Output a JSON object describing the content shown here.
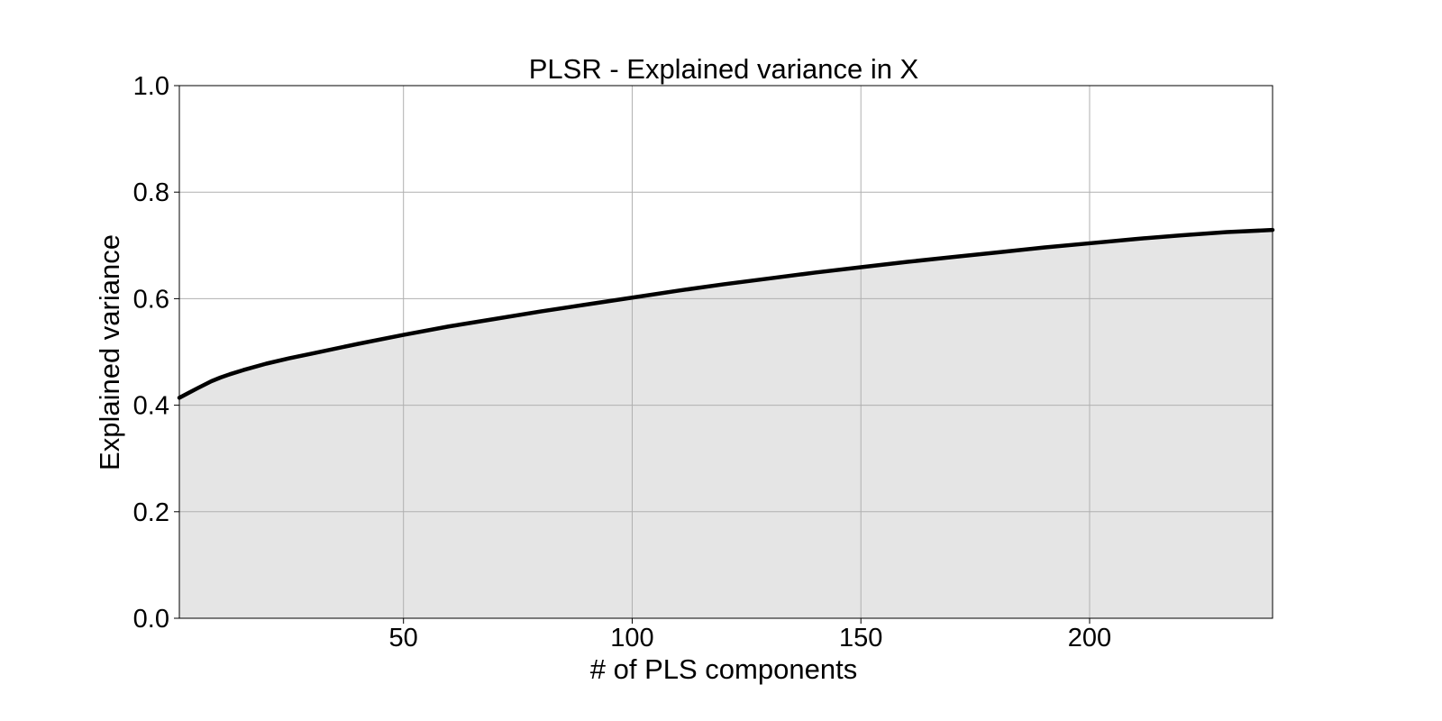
{
  "chart_data": {
    "type": "area",
    "title": "PLSR - Explained variance in X",
    "xlabel": "# of PLS components",
    "ylabel": "Explained variance",
    "xlim": [
      1,
      240
    ],
    "ylim": [
      0.0,
      1.0
    ],
    "grid": true,
    "line_color": "#000000",
    "fill_color": "#e5e5e5",
    "x_ticks": [
      {
        "value": 50,
        "label": "50"
      },
      {
        "value": 100,
        "label": "100"
      },
      {
        "value": 150,
        "label": "150"
      },
      {
        "value": 200,
        "label": "200"
      }
    ],
    "y_ticks": [
      {
        "value": 0.0,
        "label": "0.0"
      },
      {
        "value": 0.2,
        "label": "0.2"
      },
      {
        "value": 0.4,
        "label": "0.4"
      },
      {
        "value": 0.6,
        "label": "0.6"
      },
      {
        "value": 0.8,
        "label": "0.8"
      },
      {
        "value": 1.0,
        "label": "1.0"
      }
    ],
    "series": [
      {
        "x": [
          1,
          3,
          5,
          8,
          10,
          12,
          15,
          20,
          25,
          30,
          40,
          50,
          60,
          70,
          80,
          90,
          100,
          110,
          120,
          130,
          140,
          150,
          160,
          170,
          180,
          190,
          200,
          210,
          220,
          230,
          240
        ],
        "values": [
          0.414,
          0.423,
          0.432,
          0.445,
          0.452,
          0.458,
          0.466,
          0.478,
          0.488,
          0.497,
          0.515,
          0.532,
          0.548,
          0.562,
          0.576,
          0.589,
          0.602,
          0.615,
          0.627,
          0.638,
          0.649,
          0.659,
          0.669,
          0.678,
          0.687,
          0.696,
          0.704,
          0.712,
          0.719,
          0.725,
          0.729
        ]
      }
    ]
  }
}
